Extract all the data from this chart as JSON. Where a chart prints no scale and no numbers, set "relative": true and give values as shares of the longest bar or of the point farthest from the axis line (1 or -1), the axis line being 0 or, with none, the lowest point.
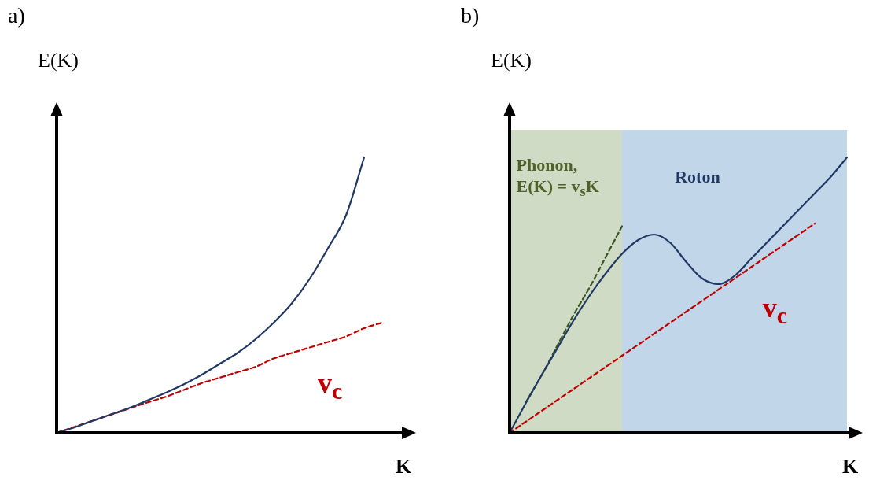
{
  "chart_data": [
    {
      "type": "line",
      "title": "a)",
      "xlabel": "K",
      "ylabel": "E(K)",
      "relative": true,
      "tick_labels": false,
      "grid": false,
      "legend": false,
      "marker": "none",
      "categories": [
        null,
        null,
        null,
        null,
        null,
        null,
        null,
        null,
        null,
        null,
        null,
        null,
        null,
        null,
        null,
        null,
        null,
        null,
        null,
        null
      ],
      "series": [
        {
          "color": "#203864",
          "line_style": "solid",
          "values": [
            0,
            0.02,
            0.044,
            0.067,
            0.09,
            0.117,
            0.145,
            0.175,
            0.21,
            0.25,
            0.29,
            0.34,
            0.4,
            0.47,
            0.56,
            0.67,
            0.79,
            1,
            null,
            null
          ]
        },
        {
          "color": "#c00000",
          "line_style": "dashed",
          "values": [
            0,
            0.022,
            0.044,
            0.066,
            0.088,
            0.11,
            0.13,
            0.155,
            0.18,
            0.2,
            0.22,
            0.24,
            0.27,
            0.29,
            0.31,
            0.33,
            0.35,
            0.38,
            0.4,
            null
          ]
        }
      ],
      "annotations": [
        "v$_{c}$"
      ]
    },
    {
      "type": "line",
      "title": "b)",
      "xlabel": "K",
      "ylabel": "E(K)",
      "relative": true,
      "tick_labels": false,
      "grid": false,
      "legend": false,
      "marker": "none",
      "categories": [
        null,
        null,
        null,
        null,
        null,
        null,
        null,
        null,
        null,
        null,
        null,
        null,
        null,
        null,
        null,
        null,
        null,
        null,
        null,
        null,
        null,
        null
      ],
      "series": [
        {
          "color": "#203864",
          "line_style": "solid",
          "values": [
            0,
            0.107,
            0.21,
            0.31,
            0.41,
            0.5,
            0.58,
            0.65,
            0.7,
            0.72,
            0.69,
            0.62,
            0.56,
            0.54,
            0.57,
            0.63,
            0.69,
            0.75,
            0.81,
            0.87,
            0.93,
            1
          ]
        },
        {
          "color": "#c00000",
          "line_style": "dashed",
          "values": [
            0,
            0.04,
            0.08,
            0.12,
            0.16,
            0.2,
            0.24,
            0.28,
            0.32,
            0.36,
            0.4,
            0.44,
            0.48,
            0.52,
            0.56,
            0.6,
            0.64,
            0.68,
            0.72,
            0.76,
            null,
            null
          ]
        },
        {
          "color": "#375623",
          "line_style": "dashed",
          "values": [
            null,
            0.11,
            0.21,
            0.32,
            0.43,
            0.53,
            0.64,
            0.75,
            null,
            null,
            null,
            null,
            null,
            null,
            null,
            null,
            null,
            null,
            null,
            null,
            null,
            null
          ]
        }
      ],
      "annotations": [
        "Phonon,\nE(K) = v$_{s}$K",
        "Roton",
        "v$_{c}$"
      ]
    }
  ]
}
